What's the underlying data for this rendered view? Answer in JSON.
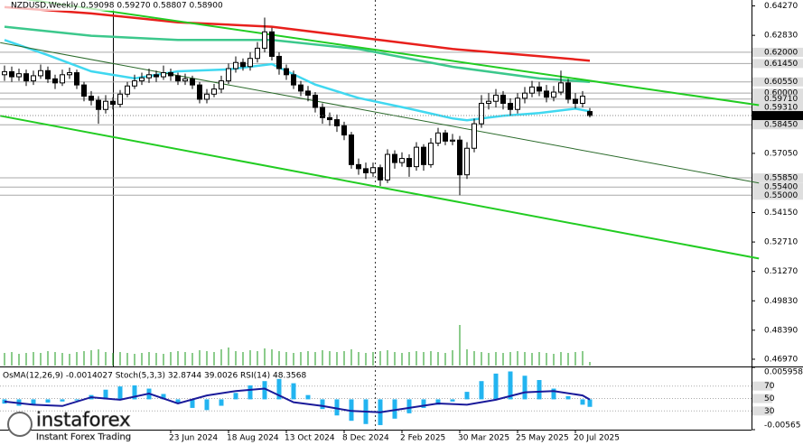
{
  "chart_data": {
    "type": "candlestick",
    "title": "NZDUSD,Weekly  0.59098 0.59270 0.58807 0.58900",
    "indicator_title": "OsMA(12,26,9) -0.0014027  Stoch(5,3,3) 32.8744 39.0026  RSI(14) 48.3568",
    "logo": "instaforex",
    "logo_tagline": "Instant Forex Trading",
    "ylim": [
      0.4688,
      0.6456
    ],
    "yticks": [
      {
        "value": 0.6427,
        "label": "0.64270"
      },
      {
        "value": 0.6283,
        "label": "0.62830"
      },
      {
        "value": 0.5705,
        "label": "0.57050"
      },
      {
        "value": 0.5415,
        "label": "0.54150"
      },
      {
        "value": 0.5271,
        "label": "0.52710"
      },
      {
        "value": 0.5127,
        "label": "0.51270"
      },
      {
        "value": 0.4983,
        "label": "0.49830"
      },
      {
        "value": 0.4839,
        "label": "0.48390"
      },
      {
        "value": 0.4697,
        "label": "0.46970"
      }
    ],
    "xticks": [
      {
        "value": 23,
        "label": "23 Jun 2024"
      },
      {
        "value": 31,
        "label": "18 Aug 2024"
      },
      {
        "value": 39,
        "label": "13 Oct 2024"
      },
      {
        "value": 47,
        "label": "8 Dec 2024"
      },
      {
        "value": 55,
        "label": "2 Feb 2025"
      },
      {
        "value": 63,
        "label": "30 Mar 2025"
      },
      {
        "value": 71,
        "label": "25 May 2025"
      },
      {
        "value": 79,
        "label": "20 Jul 2025"
      }
    ],
    "levels": [
      {
        "value": 0.62,
        "label": "0.62000"
      },
      {
        "value": 0.6145,
        "label": "0.61450"
      },
      {
        "value": 0.6055,
        "label": "0.60550"
      },
      {
        "value": 0.6,
        "label": "0.60000"
      },
      {
        "value": 0.5971,
        "label": "0.59710"
      },
      {
        "value": 0.5931,
        "label": "0.59310"
      },
      {
        "value": 0.5845,
        "label": "0.58450"
      },
      {
        "value": 0.5585,
        "label": "0.55850"
      },
      {
        "value": 0.554,
        "label": "0.55400"
      },
      {
        "value": 0.55,
        "label": "0.55000"
      }
    ],
    "current_price": {
      "value": 0.589,
      "label": "0.58900"
    },
    "open": [
      0.609,
      0.6105,
      0.608,
      0.6095,
      0.606,
      0.6085,
      0.611,
      0.607,
      0.605,
      0.609,
      0.61,
      0.604,
      0.5985,
      0.5965,
      0.592,
      0.596,
      0.5945,
      0.5995,
      0.6035,
      0.606,
      0.6075,
      0.609,
      0.608,
      0.61,
      0.6085,
      0.606,
      0.607,
      0.604,
      0.597,
      0.5995,
      0.602,
      0.606,
      0.612,
      0.615,
      0.613,
      0.617,
      0.622,
      0.63,
      0.618,
      0.612,
      0.609,
      0.604,
      0.601,
      0.599,
      0.593,
      0.588,
      0.587,
      0.584,
      0.5795,
      0.565,
      0.563,
      0.561,
      0.5635,
      0.5575,
      0.57,
      0.566,
      0.568,
      0.564,
      0.5735,
      0.565,
      0.5755,
      0.5805,
      0.5765,
      0.577,
      0.56,
      0.573,
      0.585,
      0.595,
      0.596,
      0.599,
      0.595,
      0.592,
      0.5975,
      0.6,
      0.603,
      0.601,
      0.598,
      0.6005,
      0.605,
      0.597,
      0.595,
      0.59098
    ],
    "high": [
      0.6135,
      0.613,
      0.612,
      0.6115,
      0.611,
      0.614,
      0.613,
      0.609,
      0.6115,
      0.6125,
      0.6115,
      0.6055,
      0.601,
      0.5985,
      0.599,
      0.598,
      0.6015,
      0.6055,
      0.609,
      0.61,
      0.612,
      0.611,
      0.6135,
      0.612,
      0.61,
      0.6095,
      0.6085,
      0.6055,
      0.602,
      0.6045,
      0.6085,
      0.6145,
      0.618,
      0.617,
      0.62,
      0.625,
      0.637,
      0.632,
      0.62,
      0.614,
      0.611,
      0.606,
      0.6035,
      0.6005,
      0.595,
      0.5905,
      0.5895,
      0.586,
      0.581,
      0.568,
      0.566,
      0.566,
      0.565,
      0.5725,
      0.572,
      0.571,
      0.57,
      0.576,
      0.575,
      0.578,
      0.583,
      0.582,
      0.58,
      0.579,
      0.576,
      0.5875,
      0.599,
      0.6,
      0.602,
      0.601,
      0.5975,
      0.6,
      0.603,
      0.606,
      0.6055,
      0.604,
      0.6035,
      0.611,
      0.607,
      0.6,
      0.601,
      0.5927
    ],
    "low": [
      0.606,
      0.6055,
      0.606,
      0.6035,
      0.604,
      0.607,
      0.605,
      0.602,
      0.6035,
      0.607,
      0.602,
      0.596,
      0.594,
      0.585,
      0.59,
      0.592,
      0.593,
      0.598,
      0.602,
      0.604,
      0.605,
      0.6055,
      0.6065,
      0.606,
      0.604,
      0.604,
      0.602,
      0.595,
      0.595,
      0.598,
      0.6,
      0.6045,
      0.61,
      0.611,
      0.611,
      0.615,
      0.62,
      0.616,
      0.609,
      0.6065,
      0.602,
      0.5985,
      0.596,
      0.5905,
      0.585,
      0.584,
      0.581,
      0.577,
      0.563,
      0.56,
      0.558,
      0.559,
      0.5545,
      0.556,
      0.563,
      0.564,
      0.559,
      0.562,
      0.562,
      0.5635,
      0.574,
      0.5745,
      0.5745,
      0.55,
      0.558,
      0.571,
      0.583,
      0.592,
      0.593,
      0.592,
      0.589,
      0.59,
      0.595,
      0.598,
      0.5985,
      0.5955,
      0.596,
      0.599,
      0.595,
      0.5925,
      0.593,
      0.58807
    ],
    "close": [
      0.6105,
      0.608,
      0.6095,
      0.606,
      0.6085,
      0.611,
      0.607,
      0.605,
      0.609,
      0.61,
      0.604,
      0.5985,
      0.5965,
      0.592,
      0.596,
      0.5945,
      0.5995,
      0.6035,
      0.606,
      0.6075,
      0.609,
      0.608,
      0.61,
      0.6085,
      0.606,
      0.607,
      0.604,
      0.597,
      0.5995,
      0.602,
      0.606,
      0.612,
      0.615,
      0.613,
      0.617,
      0.622,
      0.63,
      0.618,
      0.612,
      0.609,
      0.604,
      0.601,
      0.599,
      0.593,
      0.588,
      0.587,
      0.584,
      0.5795,
      0.565,
      0.563,
      0.561,
      0.5635,
      0.5575,
      0.57,
      0.566,
      0.568,
      0.564,
      0.5735,
      0.565,
      0.5755,
      0.5805,
      0.5765,
      0.577,
      0.56,
      0.573,
      0.585,
      0.595,
      0.596,
      0.599,
      0.595,
      0.592,
      0.5975,
      0.6,
      0.603,
      0.601,
      0.598,
      0.6005,
      0.605,
      0.597,
      0.595,
      0.5985,
      0.589
    ],
    "volume_lim": [
      0,
      60
    ],
    "volumes": [
      14,
      15,
      13,
      14,
      15,
      14,
      16,
      15,
      14,
      13,
      15,
      16,
      17,
      18,
      15,
      14,
      15,
      14,
      13,
      14,
      15,
      14,
      13,
      15,
      16,
      15,
      14,
      17,
      16,
      15,
      18,
      20,
      16,
      15,
      17,
      16,
      19,
      18,
      16,
      15,
      14,
      15,
      16,
      15,
      17,
      16,
      15,
      16,
      18,
      15,
      14,
      15,
      16,
      17,
      15,
      14,
      15,
      16,
      15,
      16,
      15,
      14,
      17,
      45,
      18,
      16,
      15,
      14,
      15,
      14,
      15,
      16,
      15,
      14,
      15,
      14,
      13,
      15,
      14,
      15,
      16,
      4
    ],
    "lines": [
      {
        "color": "#e8201c",
        "width": 2.5,
        "x": [
          0,
          12,
          24,
          37,
          49,
          62,
          74,
          81
        ],
        "values": [
          0.6421,
          0.639,
          0.6347,
          0.6325,
          0.6273,
          0.6216,
          0.6181,
          0.6159
        ]
      },
      {
        "color": "#3cc88c",
        "width": 2.5,
        "x": [
          0,
          12,
          24,
          37,
          49,
          62,
          74,
          81
        ],
        "values": [
          0.6325,
          0.6281,
          0.626,
          0.626,
          0.6216,
          0.6129,
          0.6072,
          0.6055
        ]
      },
      {
        "color": "#40d8f0",
        "width": 2.5,
        "x": [
          0,
          6,
          12,
          18,
          24,
          31,
          37,
          43,
          49,
          56,
          62,
          64,
          69,
          74,
          79,
          81
        ],
        "values": [
          0.626,
          0.6186,
          0.6107,
          0.6072,
          0.6107,
          0.6116,
          0.6142,
          0.6042,
          0.5976,
          0.5924,
          0.5876,
          0.5867,
          0.5889,
          0.5902,
          0.5924,
          0.5911
        ]
      },
      {
        "color": "#22cc22",
        "width": 2,
        "x": [
          -0.6,
          104.4
        ],
        "values": [
          0.6478,
          0.5941
        ]
      },
      {
        "color": "#22cc22",
        "width": 2,
        "x": [
          -0.6,
          104.4
        ],
        "values": [
          0.5889,
          0.519
        ]
      },
      {
        "color": "#2a6a2a",
        "width": 1,
        "x": [
          -0.6,
          104.4
        ],
        "values": [
          0.6247,
          0.556
        ]
      }
    ],
    "osma_lim": [
      -0.00565,
      0.0059585
    ],
    "osma_ticks": [
      0.0059585,
      -0.00565
    ],
    "osma_color": "#22b4f0",
    "osma_x": [
      0,
      2,
      4,
      6,
      8,
      10,
      12,
      14,
      16,
      18,
      20,
      22,
      24,
      26,
      28,
      30,
      32,
      34,
      36,
      38,
      40,
      42,
      44,
      46,
      48,
      50,
      52,
      54,
      56,
      58,
      60,
      62,
      64,
      66,
      68,
      70,
      72,
      74,
      76,
      78,
      80,
      81
    ],
    "osma": [
      -0.0008,
      -0.0012,
      -0.001,
      -0.0006,
      -0.0004,
      -0.0002,
      0.0008,
      0.0018,
      0.0024,
      0.0026,
      0.002,
      0.001,
      -0.0008,
      -0.0016,
      -0.002,
      -0.0012,
      0.0012,
      0.0026,
      0.0034,
      0.0038,
      0.003,
      0.0008,
      -0.0018,
      -0.003,
      -0.004,
      -0.0046,
      -0.0048,
      -0.0036,
      -0.0026,
      -0.0016,
      -0.001,
      -0.0004,
      0.0014,
      0.0034,
      0.0048,
      0.0052,
      0.0044,
      0.0036,
      0.002,
      0.0006,
      -0.001,
      -0.0014027
    ],
    "rsi_lim": [
      0,
      100
    ],
    "rsi_ticks": [
      70,
      50,
      30
    ],
    "rsi_color": "#1a1a9a",
    "rsi_x": [
      0,
      4,
      8,
      12,
      16,
      20,
      24,
      28,
      32,
      36,
      40,
      44,
      48,
      52,
      56,
      60,
      64,
      68,
      72,
      76,
      80,
      81
    ],
    "rsi": [
      45,
      40,
      38,
      52,
      48,
      58,
      42,
      55,
      62,
      66,
      44,
      38,
      30,
      28,
      35,
      42,
      40,
      48,
      60,
      62,
      55,
      48.3568
    ]
  }
}
